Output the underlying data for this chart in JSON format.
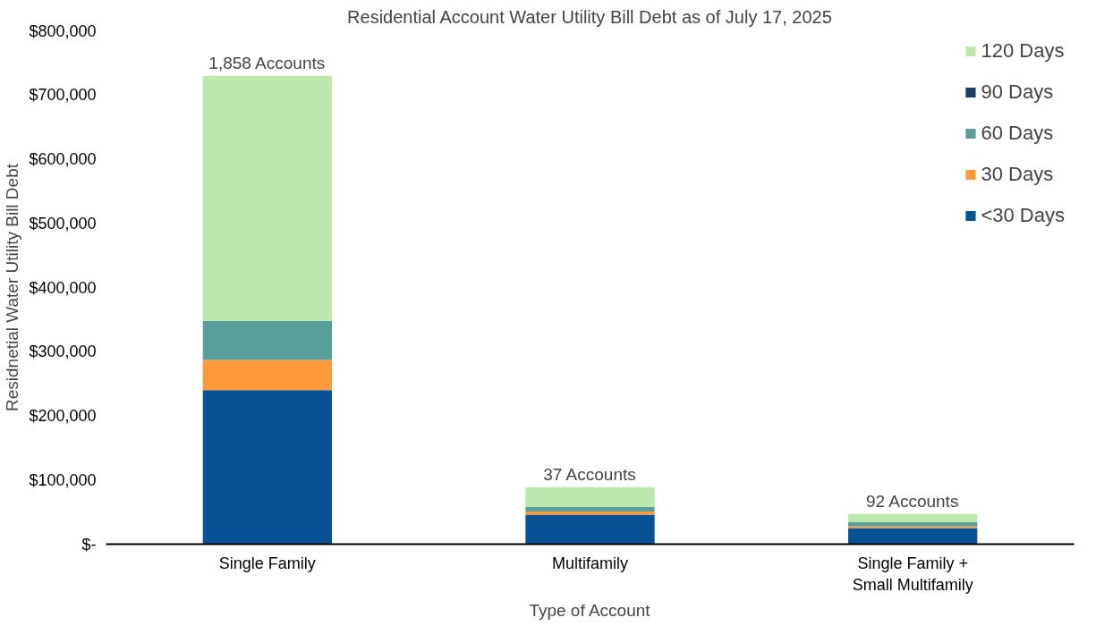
{
  "chart_data": {
    "type": "bar",
    "stacked": true,
    "title": "Residential Account Water Utility Bill Debt as of July 17, 2025",
    "xlabel": "Type of Account",
    "ylabel": "Residnetial Water Utility Bill Debt",
    "categories": [
      "Single Family",
      "Multifamily",
      "Single Family + Small Multifamily"
    ],
    "series": [
      {
        "name": "<30 Days",
        "color": "#065294",
        "values": [
          240000,
          46000,
          25000
        ]
      },
      {
        "name": "30 Days",
        "color": "#ff9a3a",
        "values": [
          47000,
          5000,
          3000
        ]
      },
      {
        "name": "60 Days",
        "color": "#5a9e9c",
        "values": [
          61000,
          7000,
          6000
        ]
      },
      {
        "name": "90 Days",
        "color": "#1a3d6a",
        "values": [
          0,
          0,
          0
        ]
      },
      {
        "name": "120 Days",
        "color": "#bde8ad",
        "values": [
          382000,
          31000,
          13000
        ]
      }
    ],
    "ylim": [
      0,
      800000
    ],
    "yticks": [
      {
        "value": 0,
        "label": "$-"
      },
      {
        "value": 100000,
        "label": "$100,000"
      },
      {
        "value": 200000,
        "label": "$200,000"
      },
      {
        "value": 300000,
        "label": "$300,000"
      },
      {
        "value": 400000,
        "label": "$400,000"
      },
      {
        "value": 500000,
        "label": "$500,000"
      },
      {
        "value": 600000,
        "label": "$600,000"
      },
      {
        "value": 700000,
        "label": "$700,000"
      },
      {
        "value": 800000,
        "label": "$800,000"
      }
    ],
    "annotations": [
      {
        "text": "1,858 Accounts",
        "x": "Single Family",
        "y": 730000
      },
      {
        "text": "37 Accounts",
        "x": "Multifamily",
        "y": 89000
      },
      {
        "text": "92 Accounts",
        "x": "Single Family + Small Multifamily",
        "y": 47000
      }
    ],
    "grid": false,
    "legend": "top right"
  }
}
